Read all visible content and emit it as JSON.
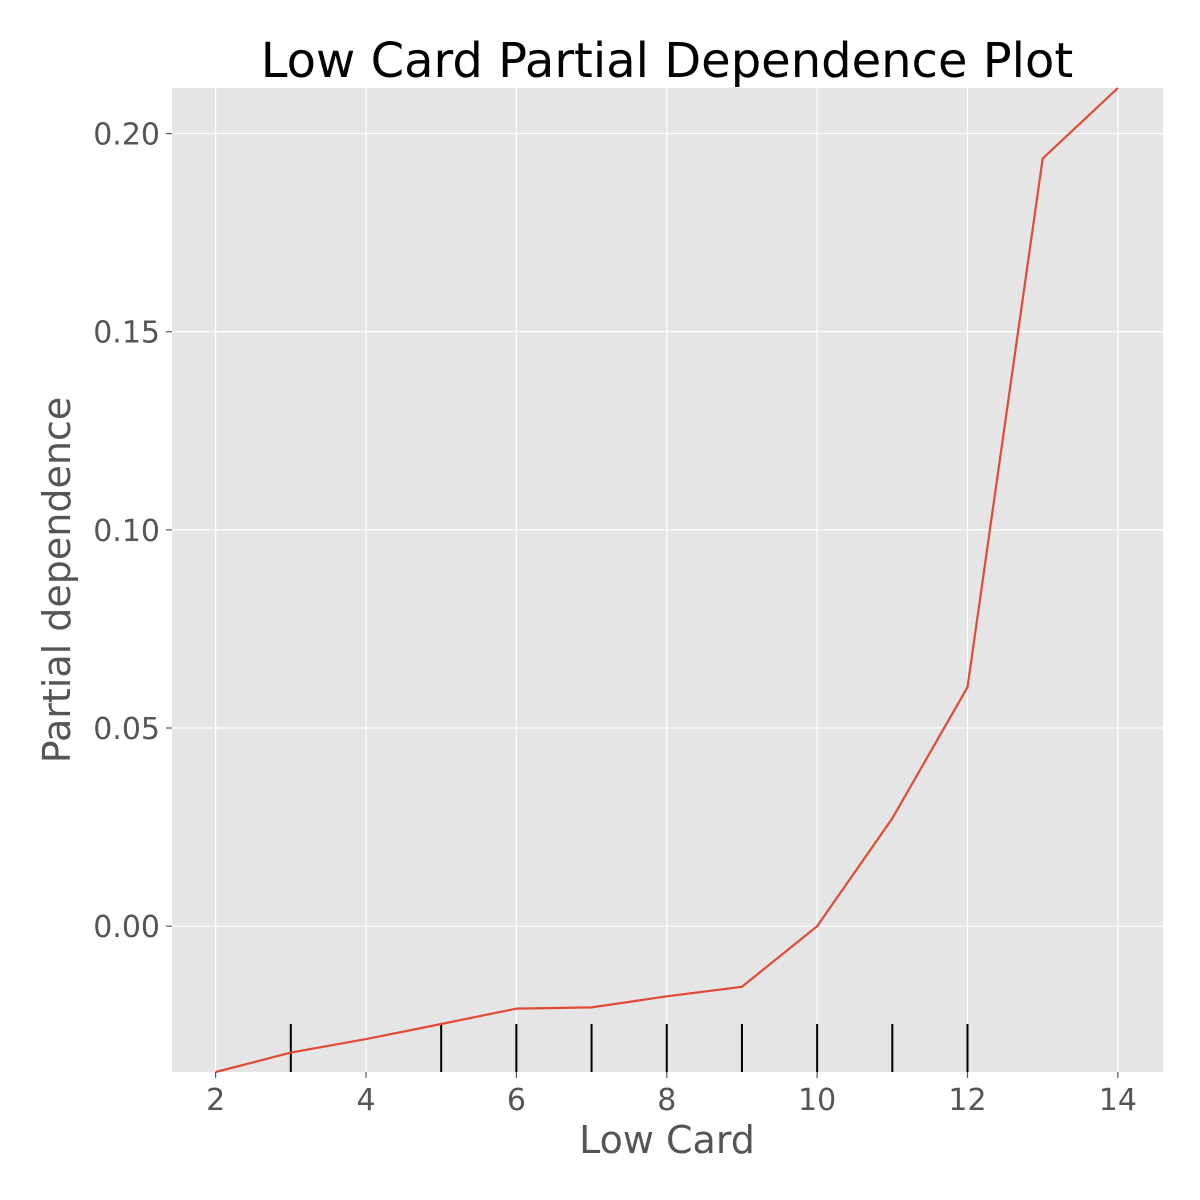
{
  "chart_data": {
    "type": "line",
    "title": "Low Card Partial Dependence Plot",
    "xlabel": "Low Card",
    "ylabel": "Partial dependence",
    "xlim": [
      1.42,
      14.6
    ],
    "ylim": [
      -0.0368,
      0.2115
    ],
    "xticks": [
      2,
      4,
      6,
      8,
      10,
      12,
      14
    ],
    "xtick_labels": [
      "2",
      "4",
      "6",
      "8",
      "10",
      "12",
      "14"
    ],
    "yticks": [
      0.0,
      0.05,
      0.1,
      0.15,
      0.2
    ],
    "ytick_labels": [
      "0.00",
      "0.05",
      "0.10",
      "0.15",
      "0.20"
    ],
    "grid": true,
    "series": [
      {
        "x": [
          2,
          3,
          4,
          5,
          6,
          7,
          8,
          9,
          10,
          11,
          12,
          13,
          14
        ],
        "y": [
          -0.0368,
          -0.0319,
          -0.0285,
          -0.0247,
          -0.0208,
          -0.0205,
          -0.0177,
          -0.0153,
          0.0,
          0.0272,
          0.0603,
          0.1937,
          0.2115
        ],
        "color": "#E24A33"
      }
    ],
    "rug": [
      3,
      5,
      6,
      7,
      8,
      9,
      10,
      11,
      12
    ],
    "colors": {
      "plot_background": "#E5E5E5",
      "grid": "#FFFFFF",
      "line": "#E24A33",
      "rug": "#000000"
    }
  }
}
